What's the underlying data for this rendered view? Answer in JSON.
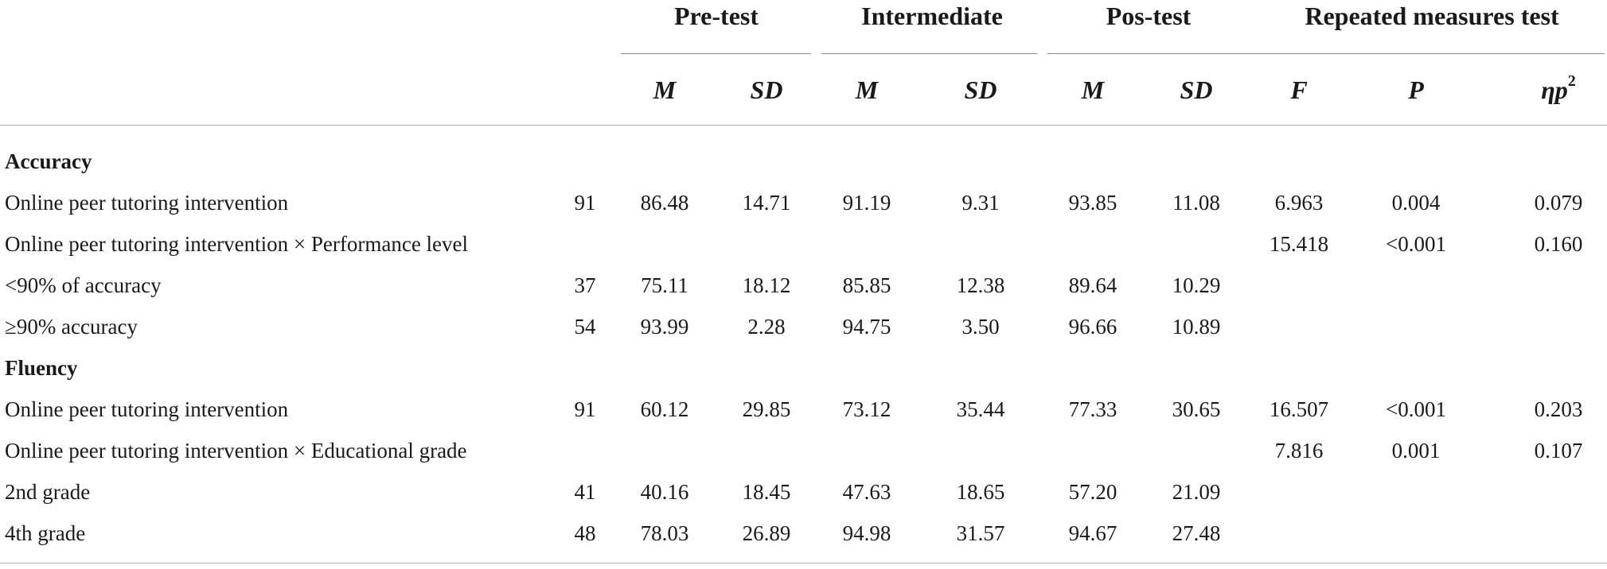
{
  "header": {
    "groups": [
      "Pre-test",
      "Intermediate",
      "Pos-test",
      "Repeated measures test"
    ],
    "subheaders": [
      "M",
      "SD",
      "M",
      "SD",
      "M",
      "SD",
      "F",
      "P",
      "ηp"
    ],
    "eta_superscript": "2"
  },
  "rows": [
    {
      "label": "Accuracy",
      "section": true,
      "cells": [
        "",
        "",
        "",
        "",
        "",
        "",
        "",
        "",
        "",
        ""
      ]
    },
    {
      "label": "Online peer tutoring intervention",
      "section": false,
      "cells": [
        "91",
        "86.48",
        "14.71",
        "91.19",
        "9.31",
        "93.85",
        "11.08",
        "6.963",
        "0.004",
        "0.079"
      ]
    },
    {
      "label": "Online peer tutoring intervention × Performance level",
      "section": false,
      "cells": [
        "",
        "",
        "",
        "",
        "",
        "",
        "",
        "15.418",
        "<0.001",
        "0.160"
      ]
    },
    {
      "label": "<90% of accuracy",
      "section": false,
      "cells": [
        "37",
        "75.11",
        "18.12",
        "85.85",
        "12.38",
        "89.64",
        "10.29",
        "",
        "",
        ""
      ]
    },
    {
      "label": "≥90% accuracy",
      "section": false,
      "cells": [
        "54",
        "93.99",
        "2.28",
        "94.75",
        "3.50",
        "96.66",
        "10.89",
        "",
        "",
        ""
      ]
    },
    {
      "label": "Fluency",
      "section": true,
      "cells": [
        "",
        "",
        "",
        "",
        "",
        "",
        "",
        "",
        "",
        ""
      ]
    },
    {
      "label": "Online peer tutoring intervention",
      "section": false,
      "cells": [
        "91",
        "60.12",
        "29.85",
        "73.12",
        "35.44",
        "77.33",
        "30.65",
        "16.507",
        "<0.001",
        "0.203"
      ]
    },
    {
      "label": "Online peer tutoring intervention × Educational grade",
      "section": false,
      "cells": [
        "",
        "",
        "",
        "",
        "",
        "",
        "",
        "7.816",
        "0.001",
        "0.107"
      ]
    },
    {
      "label": "2nd grade",
      "section": false,
      "cells": [
        "41",
        "40.16",
        "18.45",
        "47.63",
        "18.65",
        "57.20",
        "21.09",
        "",
        "",
        ""
      ]
    },
    {
      "label": "4th grade",
      "section": false,
      "cells": [
        "48",
        "78.03",
        "26.89",
        "94.98",
        "31.57",
        "94.67",
        "27.48",
        "",
        "",
        ""
      ]
    }
  ]
}
